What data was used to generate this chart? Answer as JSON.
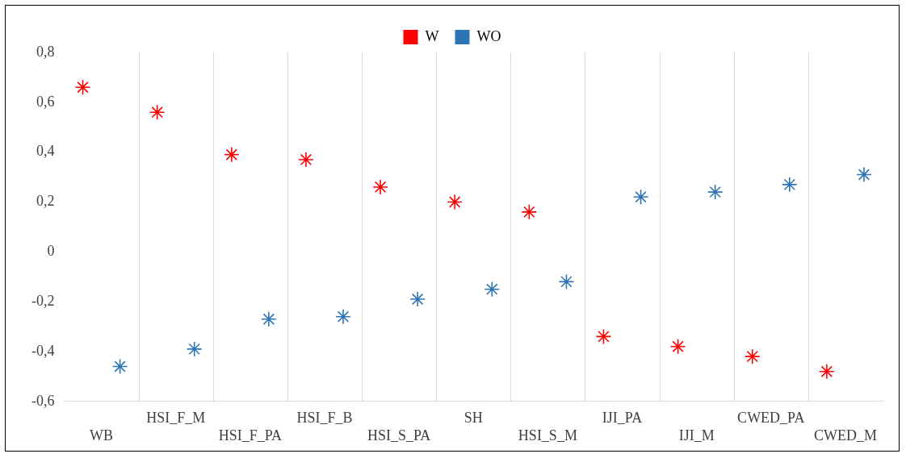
{
  "chart_data": {
    "type": "scatter",
    "categories": [
      "WB",
      "HSI_F_M",
      "HSI_F_PA",
      "HSI_F_B",
      "HSI_S_PA",
      "SH",
      "HSI_S_M",
      "IJI_PA",
      "IJI_M",
      "CWED_PA",
      "CWED_M"
    ],
    "series": [
      {
        "name": "W",
        "color": "#ff0000",
        "values": [
          0.66,
          0.56,
          0.39,
          0.37,
          0.26,
          0.2,
          0.16,
          -0.34,
          -0.38,
          -0.42,
          -0.48
        ]
      },
      {
        "name": "WO",
        "color": "#2e75b6",
        "values": [
          -0.46,
          -0.39,
          -0.27,
          -0.26,
          -0.19,
          -0.15,
          -0.12,
          0.22,
          0.24,
          0.27,
          0.31
        ]
      }
    ],
    "ylim": [
      -0.6,
      0.8
    ],
    "yticks": [
      {
        "value": -0.6,
        "label": "-0,6"
      },
      {
        "value": -0.4,
        "label": "-0,4"
      },
      {
        "value": -0.2,
        "label": "-0,2"
      },
      {
        "value": 0,
        "label": "0"
      },
      {
        "value": 0.2,
        "label": "0,2"
      },
      {
        "value": 0.4,
        "label": "0,4"
      },
      {
        "value": 0.6,
        "label": "0,6"
      },
      {
        "value": 0.8,
        "label": "0,8"
      }
    ],
    "grid": "x",
    "legend": "top",
    "marker": "cross"
  }
}
